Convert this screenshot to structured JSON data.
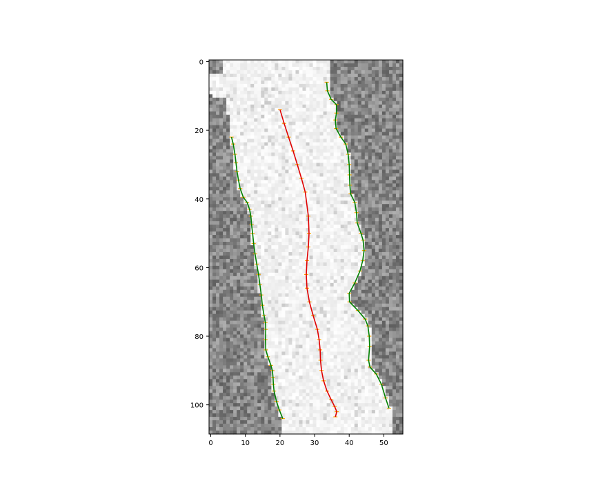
{
  "chart_data": {
    "type": "scatter",
    "description_kind": "grayscale image with overlaid boundary and centerline curves",
    "xlim": [
      -0.5,
      55.5
    ],
    "ylim": [
      108.5,
      -0.5
    ],
    "y_inverted": true,
    "grid": false,
    "xticks": [
      "0",
      "10",
      "20",
      "30",
      "40",
      "50"
    ],
    "yticks": [
      "0",
      "20",
      "40",
      "60",
      "80",
      "100"
    ],
    "colors": {
      "boundary": "#008000",
      "centerline": "#e00000",
      "markers": "#ffa500"
    },
    "series": [
      {
        "role": "left-boundary",
        "x": [
          6,
          6.5,
          7,
          7.3,
          7.6,
          8,
          8.5,
          9.4,
          10.5,
          11.2,
          11.6,
          11.8,
          12.1,
          12.4,
          12.8,
          13.3,
          13.8,
          14.2,
          14.6,
          14.9,
          15.4,
          15.8,
          15.9,
          15.8,
          15.9,
          16.5,
          17.4,
          17.8,
          18,
          18.1,
          18.3,
          19,
          19.8,
          20.8
        ],
        "y": [
          22,
          24,
          27,
          29.5,
          32,
          34.5,
          37,
          39.5,
          41,
          43,
          45,
          47.5,
          50,
          53,
          56,
          59,
          62,
          65,
          68,
          71,
          74,
          76,
          78,
          81,
          84,
          86,
          88.5,
          90,
          92,
          94,
          96,
          99,
          101.5,
          104
        ]
      },
      {
        "role": "centerline",
        "x": [
          20,
          21.2,
          22.5,
          23.8,
          25,
          26.2,
          27.3,
          28.2,
          28.4,
          28.2,
          27.8,
          27.6,
          27.8,
          28.5,
          29.6,
          30.8,
          31.3,
          31.6,
          31.7,
          32,
          32.6,
          33.6,
          34.8,
          35.8,
          36.4,
          36
        ],
        "y": [
          14,
          18,
          22,
          26,
          30,
          34,
          38,
          45,
          50,
          54,
          58,
          62,
          66,
          70,
          74,
          78,
          81,
          84,
          87,
          90,
          93,
          96,
          98.5,
          100.5,
          102,
          103.5
        ]
      },
      {
        "role": "right-boundary",
        "x": [
          33.5,
          33.7,
          34.8,
          36.3,
          36.3,
          36,
          36.2,
          37.6,
          39,
          39.7,
          40,
          40.1,
          40.2,
          40.4,
          41.6,
          42.1,
          42.3,
          43.4,
          44,
          44.3,
          43.9,
          43.1,
          41.6,
          40,
          40.1,
          42.5,
          44.6,
          45.4,
          45.8,
          45.9,
          45.6,
          46,
          47.8,
          49.3,
          50.5,
          51.5
        ],
        "y": [
          6,
          8.5,
          11,
          12.5,
          15,
          17,
          19.5,
          22,
          24,
          27,
          30,
          33,
          36,
          38.5,
          41,
          44,
          47,
          50,
          52,
          55,
          58,
          61,
          64.5,
          67.5,
          70,
          72.5,
          75,
          77,
          80,
          83,
          87,
          89,
          91,
          94,
          98,
          101
        ]
      }
    ]
  }
}
